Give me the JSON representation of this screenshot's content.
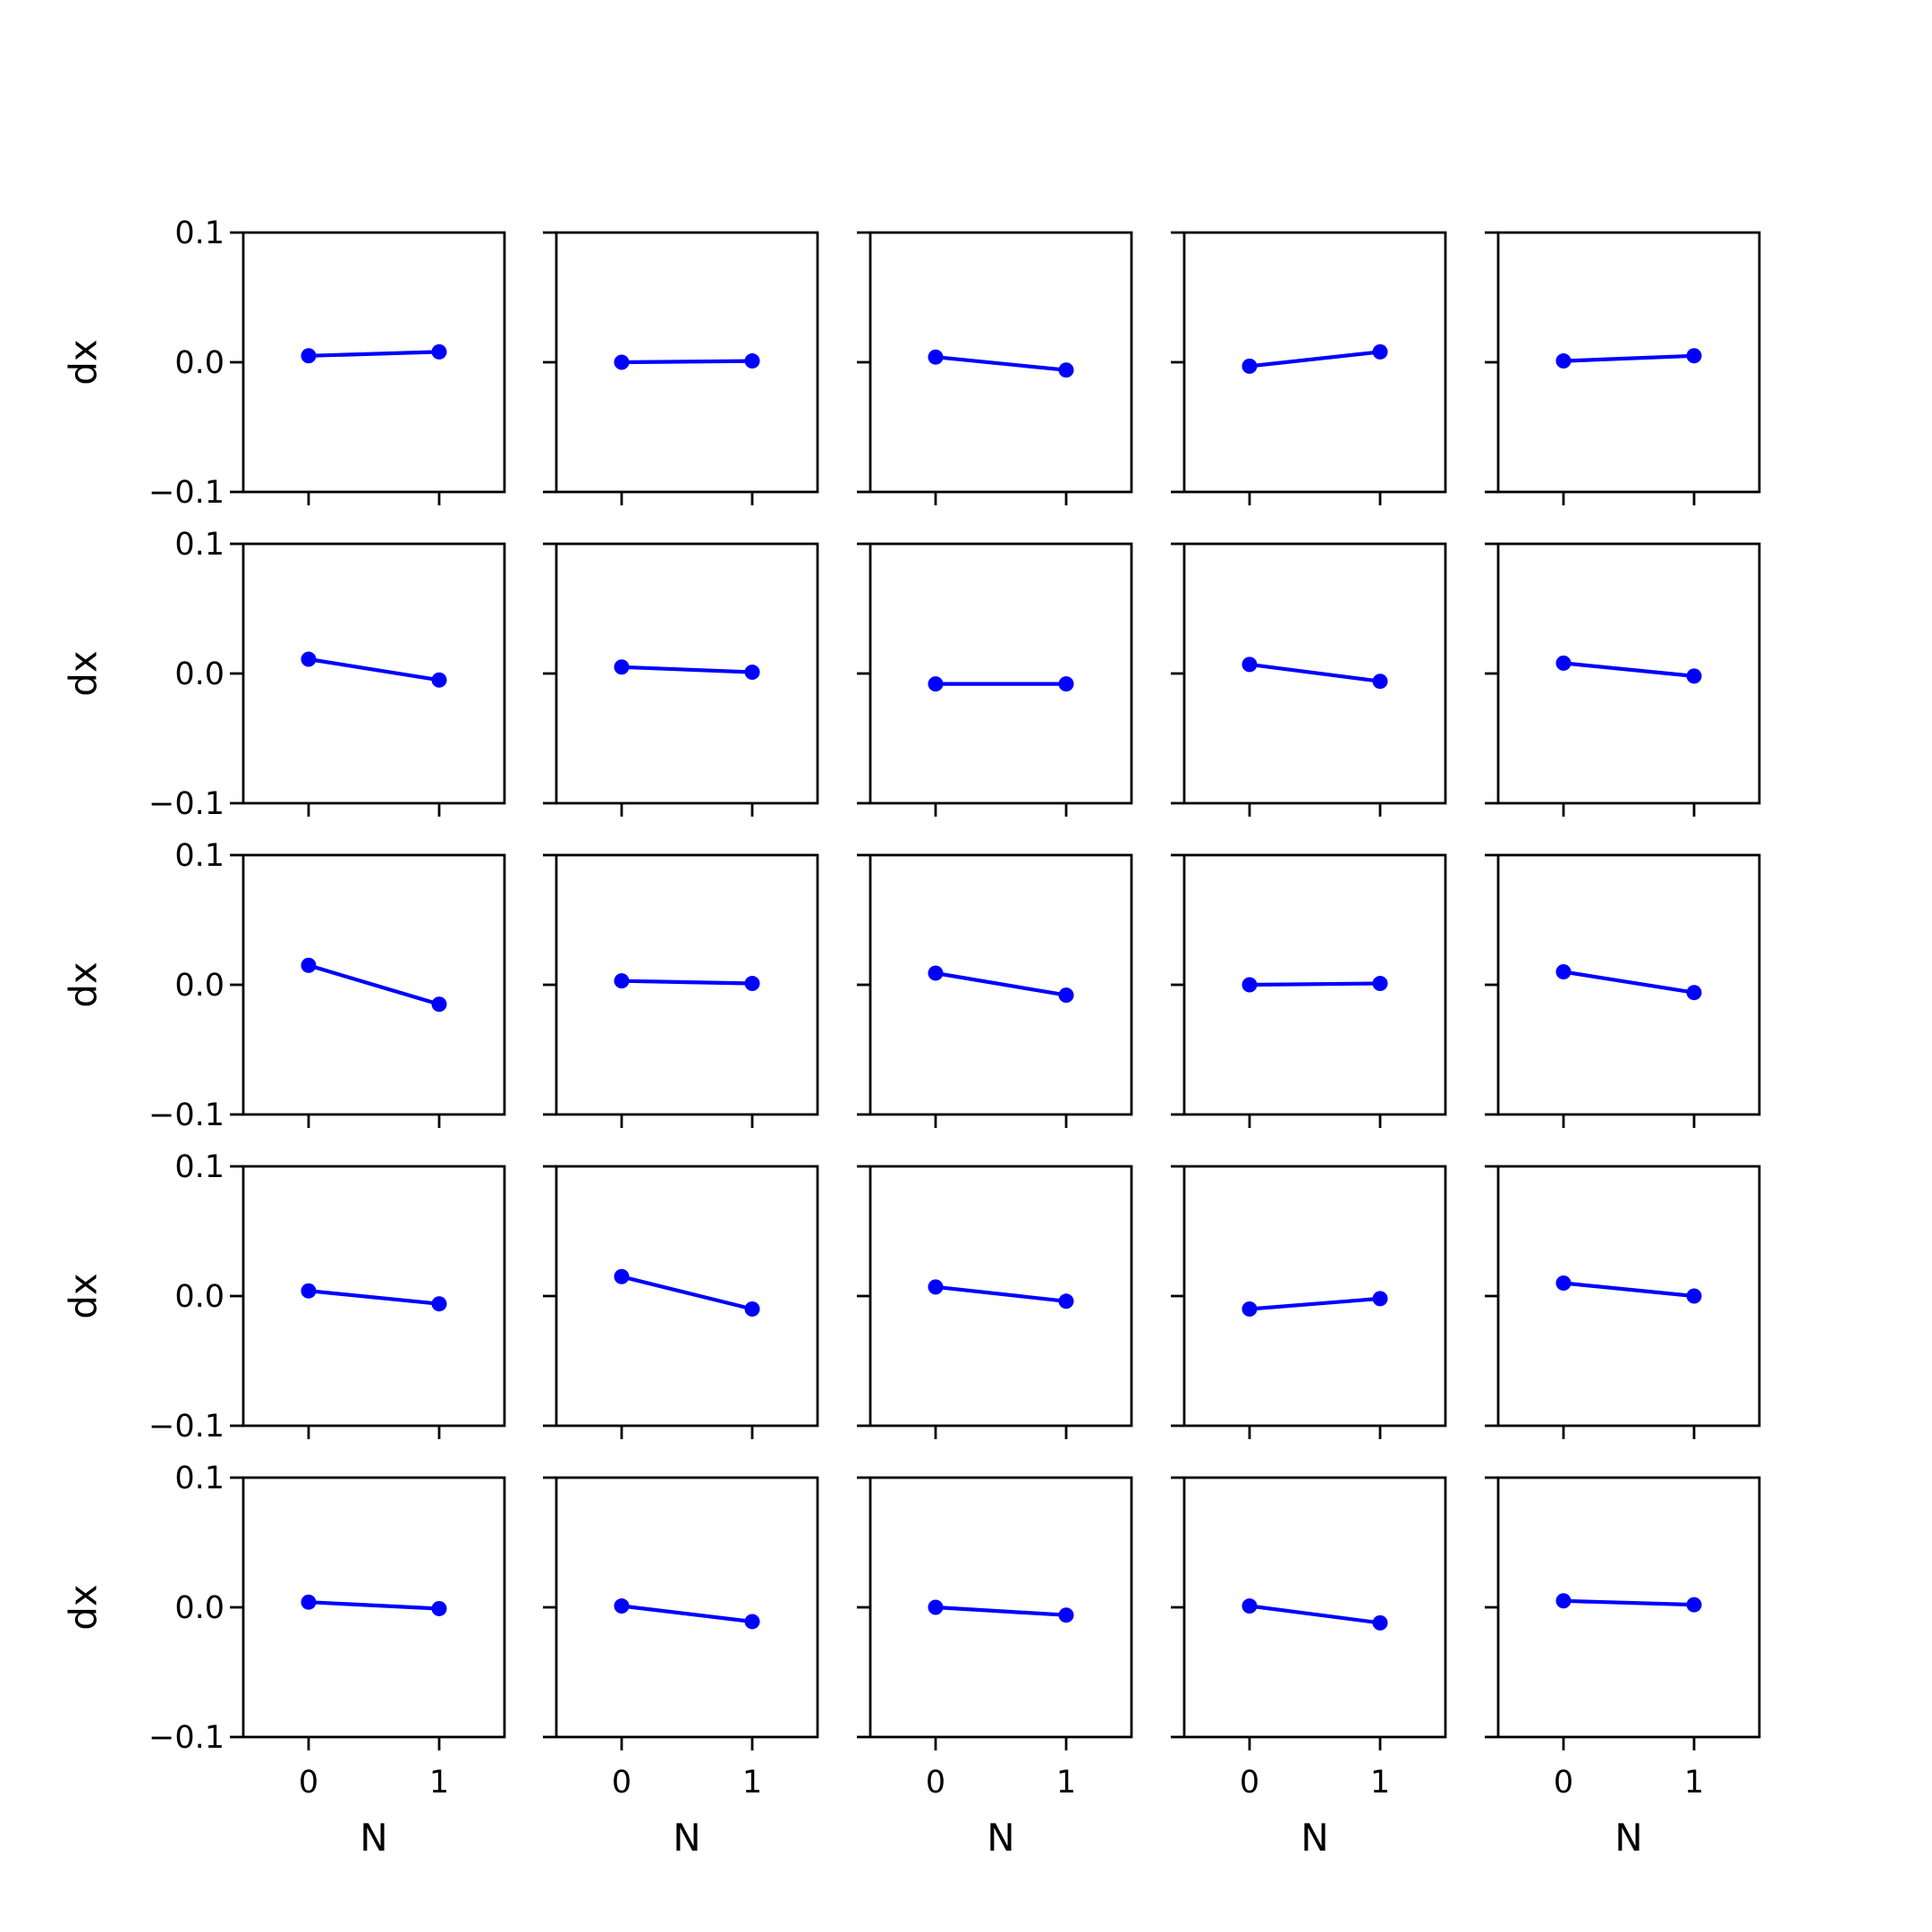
{
  "figure": {
    "colors": {
      "series": "#0000ff",
      "axes": "#000000",
      "background": "#ffffff"
    }
  },
  "chart_data": {
    "type": "line",
    "layout": "5x5 grid of small multiples, shared x and y axes",
    "xlabel": "N",
    "ylabel": "dx",
    "xlim": [
      -0.5,
      1.5
    ],
    "ylim": [
      -0.1,
      0.1
    ],
    "x_ticks": [
      0,
      1
    ],
    "x_tick_labels": [
      "0",
      "1"
    ],
    "y_ticks": [
      -0.1,
      0.0,
      0.1
    ],
    "y_tick_labels": [
      "−0.1",
      "0.0",
      "0.1"
    ],
    "grid": false,
    "legend": "none",
    "x": [
      0,
      1
    ],
    "panels": [
      {
        "row": 0,
        "col": 0,
        "y": [
          0.005,
          0.008
        ]
      },
      {
        "row": 0,
        "col": 1,
        "y": [
          0.0,
          0.001
        ]
      },
      {
        "row": 0,
        "col": 2,
        "y": [
          0.004,
          -0.006
        ]
      },
      {
        "row": 0,
        "col": 3,
        "y": [
          -0.003,
          0.008
        ]
      },
      {
        "row": 0,
        "col": 4,
        "y": [
          0.001,
          0.005
        ]
      },
      {
        "row": 1,
        "col": 0,
        "y": [
          0.011,
          -0.005
        ]
      },
      {
        "row": 1,
        "col": 1,
        "y": [
          0.005,
          0.001
        ]
      },
      {
        "row": 1,
        "col": 2,
        "y": [
          -0.008,
          -0.008
        ]
      },
      {
        "row": 1,
        "col": 3,
        "y": [
          0.007,
          -0.006
        ]
      },
      {
        "row": 1,
        "col": 4,
        "y": [
          0.008,
          -0.002
        ]
      },
      {
        "row": 2,
        "col": 0,
        "y": [
          0.015,
          -0.015
        ]
      },
      {
        "row": 2,
        "col": 1,
        "y": [
          0.003,
          0.001
        ]
      },
      {
        "row": 2,
        "col": 2,
        "y": [
          0.009,
          -0.008
        ]
      },
      {
        "row": 2,
        "col": 3,
        "y": [
          0.0,
          0.001
        ]
      },
      {
        "row": 2,
        "col": 4,
        "y": [
          0.01,
          -0.006
        ]
      },
      {
        "row": 3,
        "col": 0,
        "y": [
          0.004,
          -0.006
        ]
      },
      {
        "row": 3,
        "col": 1,
        "y": [
          0.015,
          -0.01
        ]
      },
      {
        "row": 3,
        "col": 2,
        "y": [
          0.007,
          -0.004
        ]
      },
      {
        "row": 3,
        "col": 3,
        "y": [
          -0.01,
          -0.002
        ]
      },
      {
        "row": 3,
        "col": 4,
        "y": [
          0.01,
          0.0
        ]
      },
      {
        "row": 4,
        "col": 0,
        "y": [
          0.004,
          -0.001
        ]
      },
      {
        "row": 4,
        "col": 1,
        "y": [
          0.001,
          -0.011
        ]
      },
      {
        "row": 4,
        "col": 2,
        "y": [
          0.0,
          -0.006
        ]
      },
      {
        "row": 4,
        "col": 3,
        "y": [
          0.001,
          -0.012
        ]
      },
      {
        "row": 4,
        "col": 4,
        "y": [
          0.005,
          0.002
        ]
      }
    ]
  }
}
